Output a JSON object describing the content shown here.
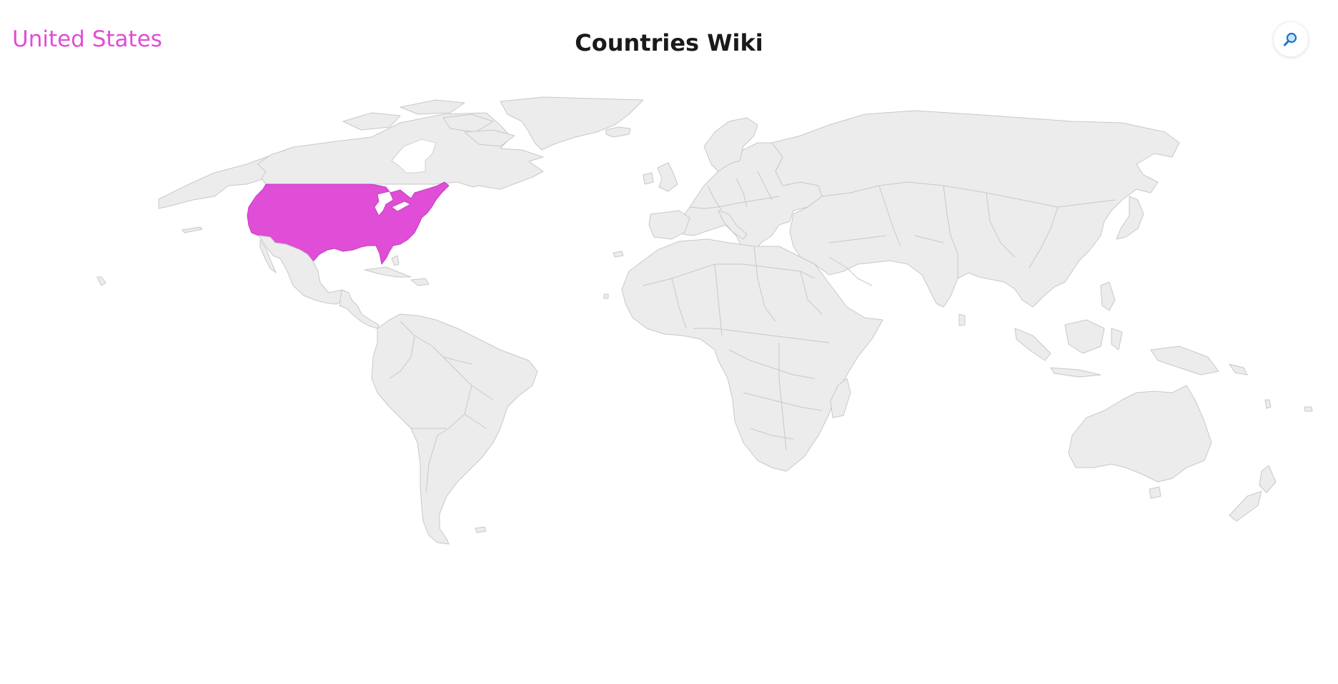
{
  "header": {
    "selected_country": "United States",
    "title": "Countries Wiki",
    "search_icon": "magnifier-icon"
  },
  "map": {
    "projection": "world",
    "selected": "United States",
    "colors": {
      "land": "#ececec",
      "border": "#c8c8c8",
      "highlight": "#e04dd6"
    }
  }
}
